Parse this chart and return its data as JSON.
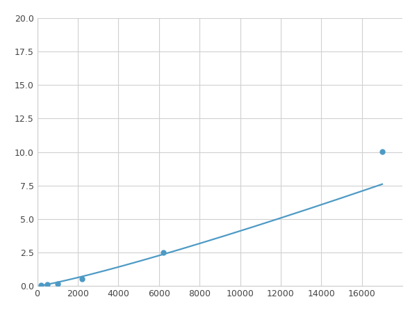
{
  "x_points": [
    200,
    500,
    1000,
    2200,
    6200,
    17000
  ],
  "y_points": [
    0.07,
    0.12,
    0.18,
    0.55,
    2.5,
    10.05
  ],
  "line_color": "#4d9ac5",
  "marker_color": "#4d9ac5",
  "marker_size": 5,
  "line_width": 1.6,
  "xlim": [
    0,
    18000
  ],
  "ylim": [
    0,
    20
  ],
  "xticks": [
    0,
    2000,
    4000,
    6000,
    8000,
    10000,
    12000,
    14000,
    16000
  ],
  "yticks": [
    0.0,
    2.5,
    5.0,
    7.5,
    10.0,
    12.5,
    15.0,
    17.5,
    20.0
  ],
  "grid_color": "#d0d0d0",
  "background_color": "#ffffff",
  "spine_color": "#cccccc"
}
